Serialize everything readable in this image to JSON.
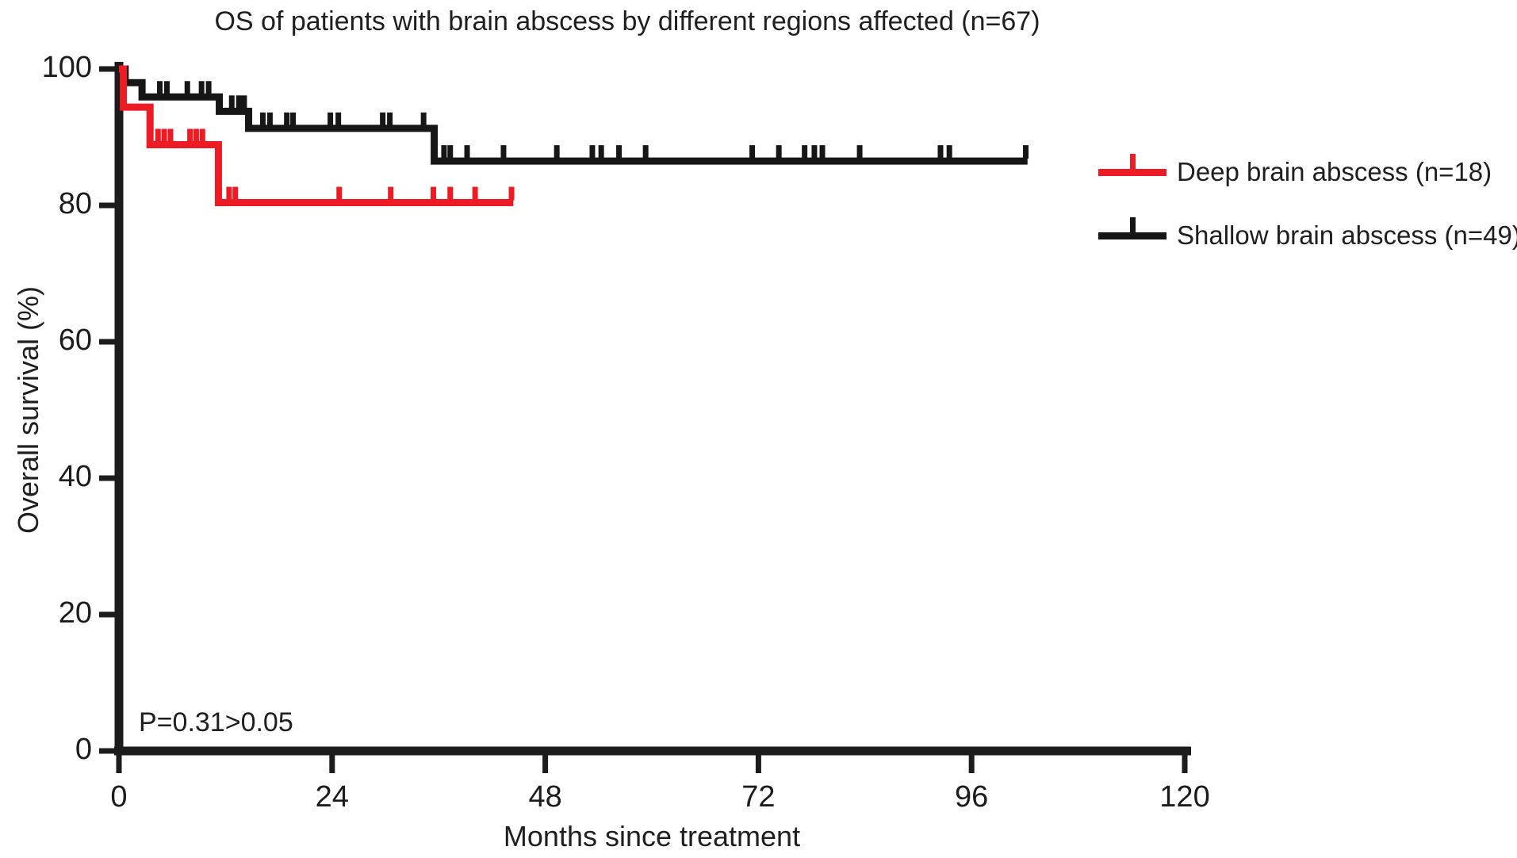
{
  "figure": {
    "background": "#ffffff",
    "ink_color": "#1c1c1c"
  },
  "title": "OS of patients with brain abscess by different regions affected (n=67)",
  "annotation": {
    "p_value": "P=0.31>0.05"
  },
  "axes": {
    "x_label": "Months since treatment",
    "y_label": "Overall survival (%)",
    "x_ticks": [
      0,
      24,
      48,
      72,
      96,
      120
    ],
    "y_ticks": [
      0,
      20,
      40,
      60,
      80,
      100
    ],
    "x_max": 120,
    "y_max": 100
  },
  "legend": {
    "items": [
      {
        "label": "Deep brain abscess (n=18)",
        "color": "#ed1c24",
        "marker": "line-with-censor-tick"
      },
      {
        "label": "Shallow brain abscess (n=49)",
        "color": "#161616",
        "marker": "line-with-censor-tick"
      }
    ]
  },
  "chart_data": {
    "type": "line",
    "subtype": "kaplan_meier_step",
    "title": "OS of patients with brain abscess by different regions affected (n=67)",
    "xlabel": "Months since treatment",
    "ylabel": "Overall survival (%)",
    "xlim": [
      0,
      120
    ],
    "ylim": [
      0,
      100
    ],
    "x_ticks": [
      0,
      24,
      48,
      72,
      96,
      120
    ],
    "y_ticks": [
      0,
      20,
      40,
      60,
      80,
      100
    ],
    "grid": false,
    "legend_position": "right",
    "annotations": [
      {
        "text": "P=0.31>0.05",
        "x_month": 3,
        "y_percent": 4
      }
    ],
    "series": [
      {
        "name": "Deep brain abscess (n=18)",
        "color": "#ed1c24",
        "n": 18,
        "steps": [
          {
            "t": 0,
            "s": 100
          },
          {
            "t": 0.5,
            "s": 94.4
          },
          {
            "t": 3.5,
            "s": 88.9
          },
          {
            "t": 11.2,
            "s": 80.4
          }
        ],
        "end_time": 44.4,
        "censor_marks": [
          {
            "t": 4.4,
            "s": 88.9
          },
          {
            "t": 5.1,
            "s": 88.9
          },
          {
            "t": 5.8,
            "s": 88.9
          },
          {
            "t": 8.0,
            "s": 88.9
          },
          {
            "t": 8.7,
            "s": 88.9
          },
          {
            "t": 9.4,
            "s": 88.9
          },
          {
            "t": 12.4,
            "s": 80.4
          },
          {
            "t": 13.1,
            "s": 80.4
          },
          {
            "t": 24.8,
            "s": 80.4
          },
          {
            "t": 30.6,
            "s": 80.4
          },
          {
            "t": 35.4,
            "s": 80.4
          },
          {
            "t": 37.3,
            "s": 80.4
          },
          {
            "t": 40.1,
            "s": 80.4
          },
          {
            "t": 44.2,
            "s": 80.4
          }
        ]
      },
      {
        "name": "Shallow brain abscess (n=49)",
        "color": "#161616",
        "n": 49,
        "steps": [
          {
            "t": 0,
            "s": 100
          },
          {
            "t": 0.7,
            "s": 98
          },
          {
            "t": 2.6,
            "s": 95.9
          },
          {
            "t": 11.3,
            "s": 93.8
          },
          {
            "t": 14.6,
            "s": 91.3
          },
          {
            "t": 35.5,
            "s": 86.5
          }
        ],
        "end_time": 102.3,
        "censor_marks": [
          {
            "t": 4.6,
            "s": 95.9
          },
          {
            "t": 5.4,
            "s": 95.9
          },
          {
            "t": 7.7,
            "s": 95.9
          },
          {
            "t": 9.3,
            "s": 95.9
          },
          {
            "t": 10.1,
            "s": 95.9
          },
          {
            "t": 12.7,
            "s": 93.8
          },
          {
            "t": 13.5,
            "s": 93.8
          },
          {
            "t": 14.1,
            "s": 93.8
          },
          {
            "t": 16.2,
            "s": 91.3
          },
          {
            "t": 17.0,
            "s": 91.3
          },
          {
            "t": 18.9,
            "s": 91.3
          },
          {
            "t": 19.6,
            "s": 91.3
          },
          {
            "t": 23.8,
            "s": 91.3
          },
          {
            "t": 24.7,
            "s": 91.3
          },
          {
            "t": 29.7,
            "s": 91.3
          },
          {
            "t": 30.5,
            "s": 91.3
          },
          {
            "t": 34.3,
            "s": 91.3
          },
          {
            "t": 36.6,
            "s": 86.5
          },
          {
            "t": 37.3,
            "s": 86.5
          },
          {
            "t": 39.2,
            "s": 86.5
          },
          {
            "t": 43.3,
            "s": 86.5
          },
          {
            "t": 49.3,
            "s": 86.5
          },
          {
            "t": 53.3,
            "s": 86.5
          },
          {
            "t": 54.3,
            "s": 86.5
          },
          {
            "t": 56.3,
            "s": 86.5
          },
          {
            "t": 59.3,
            "s": 86.5
          },
          {
            "t": 71.3,
            "s": 86.5
          },
          {
            "t": 74.3,
            "s": 86.5
          },
          {
            "t": 77.2,
            "s": 86.5
          },
          {
            "t": 78.3,
            "s": 86.5
          },
          {
            "t": 79.2,
            "s": 86.5
          },
          {
            "t": 83.4,
            "s": 86.5
          },
          {
            "t": 92.5,
            "s": 86.5
          },
          {
            "t": 93.5,
            "s": 86.5
          },
          {
            "t": 102.1,
            "s": 86.5
          }
        ]
      }
    ]
  }
}
